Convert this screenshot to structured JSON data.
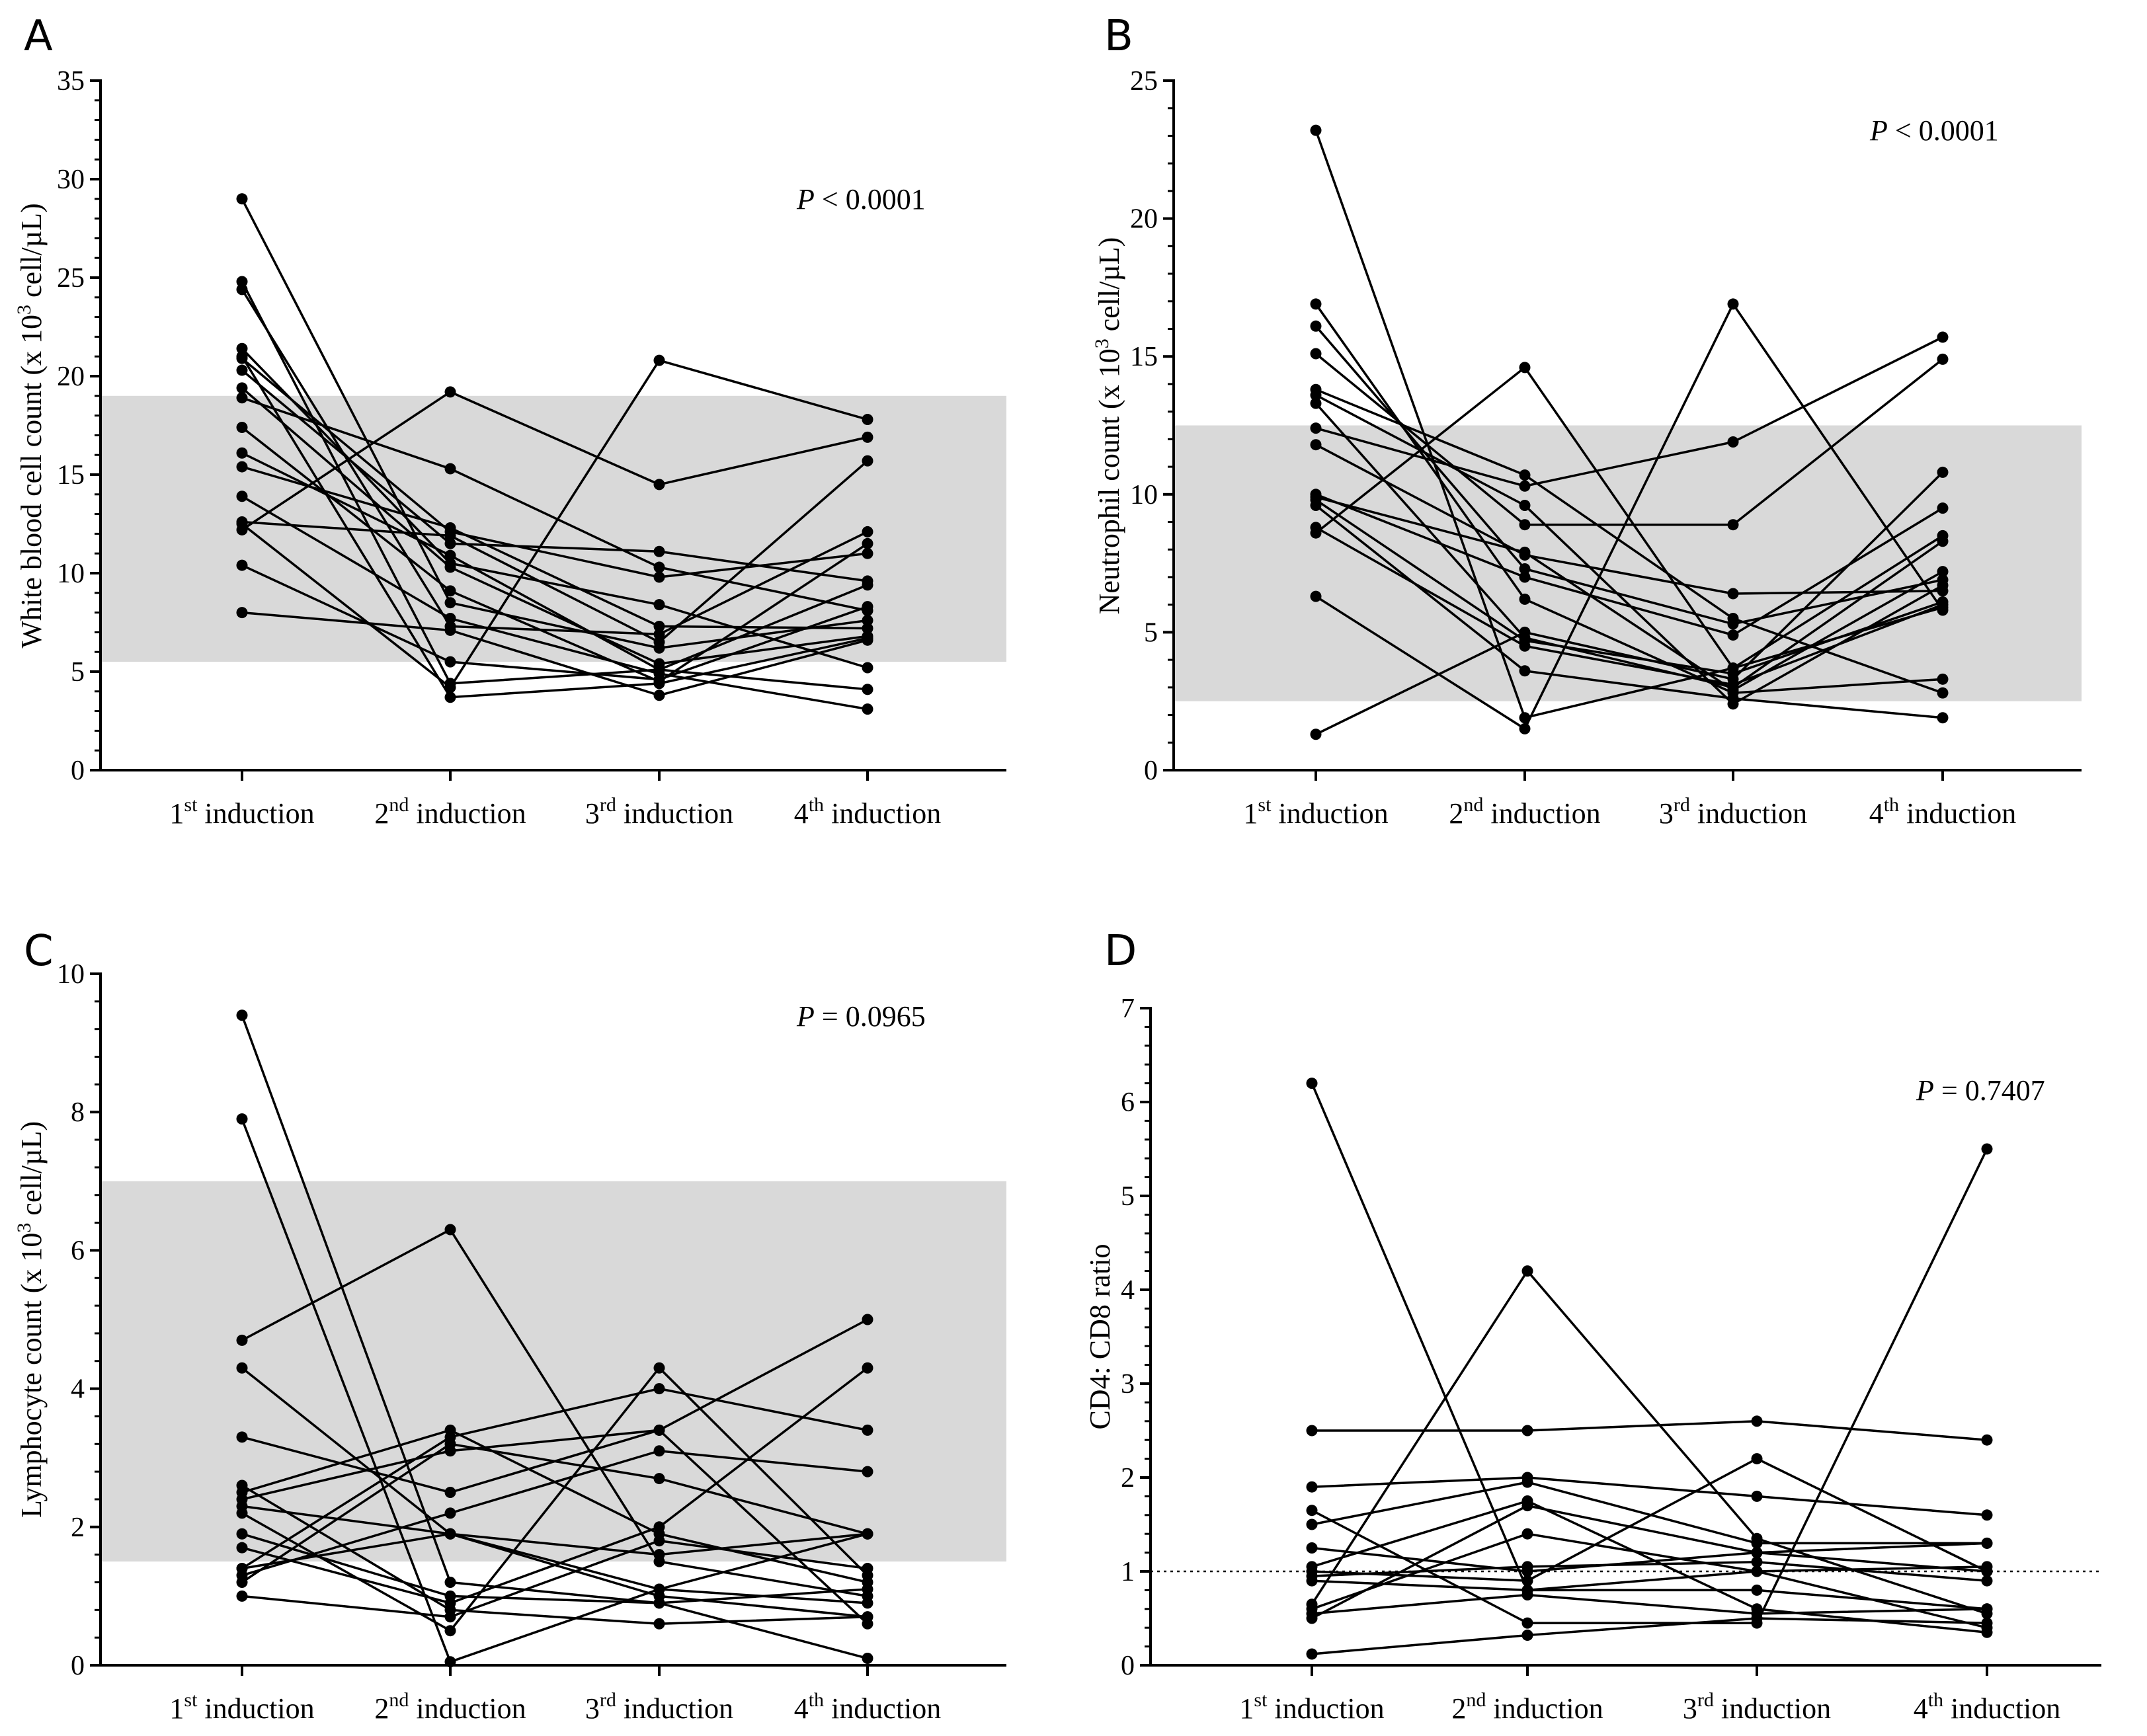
{
  "chart_data": [
    {
      "panel": "A",
      "type": "line",
      "categories": [
        "1st induction",
        "2nd induction",
        "3rd induction",
        "4th induction"
      ],
      "ylabel": "White blood cell count (x 10³ cell/µL)",
      "ylim": [
        0,
        35
      ],
      "yticks": [
        0,
        5,
        10,
        15,
        20,
        25,
        30,
        35
      ],
      "reference_band": [
        5.5,
        19
      ],
      "annotation": "P < 0.0001",
      "series": [
        {
          "values": [
            29.0,
            8.5,
            6.2,
            7.6
          ]
        },
        {
          "values": [
            24.8,
            4.4,
            5.1,
            9.4
          ]
        },
        {
          "values": [
            24.4,
            7.3,
            6.9,
            12.1
          ]
        },
        {
          "values": [
            21.4,
            10.5,
            8.4,
            5.2
          ]
        },
        {
          "values": [
            21.0,
            3.7,
            4.4,
            6.7
          ]
        },
        {
          "values": [
            20.9,
            12.1,
            9.8,
            11.0
          ]
        },
        {
          "values": [
            20.3,
            11.5,
            11.1,
            9.6
          ]
        },
        {
          "values": [
            19.4,
            10.3,
            5.4,
            6.8
          ]
        },
        {
          "values": [
            18.9,
            15.3,
            10.3,
            8.1
          ]
        },
        {
          "values": [
            17.4,
            9.1,
            4.5,
            11.5
          ]
        },
        {
          "values": [
            16.1,
            10.9,
            5.1,
            4.1
          ]
        },
        {
          "values": [
            15.4,
            12.3,
            7.3,
            7.2
          ]
        },
        {
          "values": [
            13.9,
            7.7,
            4.9,
            3.1
          ]
        },
        {
          "values": [
            12.6,
            11.9,
            6.5,
            15.7
          ]
        },
        {
          "values": [
            12.5,
            4.2,
            20.8,
            17.8
          ]
        },
        {
          "values": [
            12.2,
            19.2,
            14.5,
            16.9
          ]
        },
        {
          "values": [
            10.4,
            5.5,
            4.6,
            8.3
          ]
        },
        {
          "values": [
            8.0,
            7.1,
            3.8,
            6.6
          ]
        }
      ]
    },
    {
      "panel": "B",
      "type": "line",
      "categories": [
        "1st induction",
        "2nd induction",
        "3rd induction",
        "4th induction"
      ],
      "ylabel": "Neutrophil count (x 10³ cell/µL)",
      "ylim": [
        0,
        25
      ],
      "yticks": [
        0,
        5,
        10,
        15,
        20,
        25
      ],
      "reference_band": [
        2.5,
        12.5
      ],
      "annotation": "P < 0.0001",
      "series": [
        {
          "values": [
            23.2,
            1.9,
            3.7,
            8.5
          ]
        },
        {
          "values": [
            16.9,
            6.2,
            2.8,
            3.3
          ]
        },
        {
          "values": [
            16.1,
            7.3,
            5.3,
            6.9
          ]
        },
        {
          "values": [
            15.1,
            8.9,
            8.9,
            14.9
          ]
        },
        {
          "values": [
            13.8,
            10.7,
            5.5,
            2.8
          ]
        },
        {
          "values": [
            13.6,
            9.6,
            2.4,
            6.7
          ]
        },
        {
          "values": [
            13.3,
            4.8,
            3.0,
            8.3
          ]
        },
        {
          "values": [
            12.4,
            10.3,
            11.9,
            15.7
          ]
        },
        {
          "values": [
            11.8,
            7.8,
            6.4,
            6.5
          ]
        },
        {
          "values": [
            10.0,
            7.0,
            4.9,
            9.5
          ]
        },
        {
          "values": [
            9.8,
            4.7,
            3.5,
            6.1
          ]
        },
        {
          "values": [
            9.6,
            3.6,
            2.6,
            1.9
          ]
        },
        {
          "values": [
            8.8,
            4.5,
            3.1,
            6.0
          ]
        },
        {
          "values": [
            8.6,
            14.6,
            3.7,
            5.9
          ]
        },
        {
          "values": [
            6.3,
            1.5,
            16.9,
            5.8
          ]
        },
        {
          "values": [
            1.3,
            5.0,
            3.3,
            10.8
          ]
        },
        {
          "values": [
            9.9,
            7.9,
            2.9,
            7.2
          ]
        }
      ]
    },
    {
      "panel": "C",
      "type": "line",
      "categories": [
        "1st induction",
        "2nd induction",
        "3rd induction",
        "4th induction"
      ],
      "ylabel": "Lymphocyte count (x 10³ cell/µL)",
      "ylim": [
        0,
        10
      ],
      "yticks": [
        0,
        2,
        4,
        6,
        8,
        10
      ],
      "reference_band": [
        1.5,
        7
      ],
      "annotation": "P = 0.0965",
      "series": [
        {
          "values": [
            9.4,
            1.2,
            0.9,
            1.1
          ]
        },
        {
          "values": [
            7.9,
            0.05,
            1.1,
            1.9
          ]
        },
        {
          "values": [
            4.7,
            6.3,
            1.5,
            1.0
          ]
        },
        {
          "values": [
            4.3,
            1.9,
            1.0,
            0.7
          ]
        },
        {
          "values": [
            3.3,
            2.5,
            3.4,
            0.6
          ]
        },
        {
          "values": [
            2.6,
            0.8,
            0.6,
            0.7
          ]
        },
        {
          "values": [
            2.5,
            3.4,
            1.9,
            1.2
          ]
        },
        {
          "values": [
            2.4,
            3.1,
            3.4,
            5.0
          ]
        },
        {
          "values": [
            2.3,
            1.9,
            1.6,
            1.9
          ]
        },
        {
          "values": [
            2.2,
            0.5,
            4.3,
            1.3
          ]
        },
        {
          "values": [
            1.9,
            1.0,
            0.9,
            0.1
          ]
        },
        {
          "values": [
            1.7,
            0.9,
            2.0,
            4.3
          ]
        },
        {
          "values": [
            1.4,
            3.3,
            4.0,
            3.4
          ]
        },
        {
          "values": [
            1.3,
            2.2,
            3.1,
            2.8
          ]
        },
        {
          "values": [
            1.2,
            3.2,
            2.7,
            1.9
          ]
        },
        {
          "values": [
            1.0,
            0.7,
            1.8,
            1.4
          ]
        },
        {
          "values": [
            1.4,
            1.9,
            1.1,
            0.9
          ]
        }
      ]
    },
    {
      "panel": "D",
      "type": "line",
      "categories": [
        "1st induction",
        "2nd induction",
        "3rd induction",
        "4th induction"
      ],
      "ylabel": "CD4: CD8 ratio",
      "ylim": [
        0,
        7
      ],
      "yticks": [
        0,
        1,
        2,
        3,
        4,
        5,
        6,
        7
      ],
      "reference_line": 1,
      "annotation": "P = 0.7407",
      "series": [
        {
          "values": [
            6.2,
            0.8,
            0.8,
            0.6
          ]
        },
        {
          "values": [
            2.5,
            2.5,
            2.6,
            2.4
          ]
        },
        {
          "values": [
            1.9,
            2.0,
            1.8,
            1.6
          ]
        },
        {
          "values": [
            1.65,
            0.45,
            0.45,
            5.5
          ]
        },
        {
          "values": [
            1.5,
            1.95,
            1.3,
            1.3
          ]
        },
        {
          "values": [
            1.25,
            1.0,
            1.2,
            1.3
          ]
        },
        {
          "values": [
            1.05,
            1.75,
            0.6,
            0.35
          ]
        },
        {
          "values": [
            1.0,
            0.9,
            2.2,
            1.0
          ]
        },
        {
          "values": [
            0.95,
            1.05,
            1.1,
            0.9
          ]
        },
        {
          "values": [
            0.9,
            0.8,
            1.0,
            0.4
          ]
        },
        {
          "values": [
            0.65,
            4.2,
            1.35,
            0.55
          ]
        },
        {
          "values": [
            0.6,
            1.4,
            1.0,
            1.05
          ]
        },
        {
          "values": [
            0.55,
            0.75,
            0.55,
            0.6
          ]
        },
        {
          "values": [
            0.5,
            1.7,
            1.2,
            1.0
          ]
        },
        {
          "values": [
            0.12,
            0.32,
            0.5,
            0.45
          ]
        }
      ]
    }
  ]
}
